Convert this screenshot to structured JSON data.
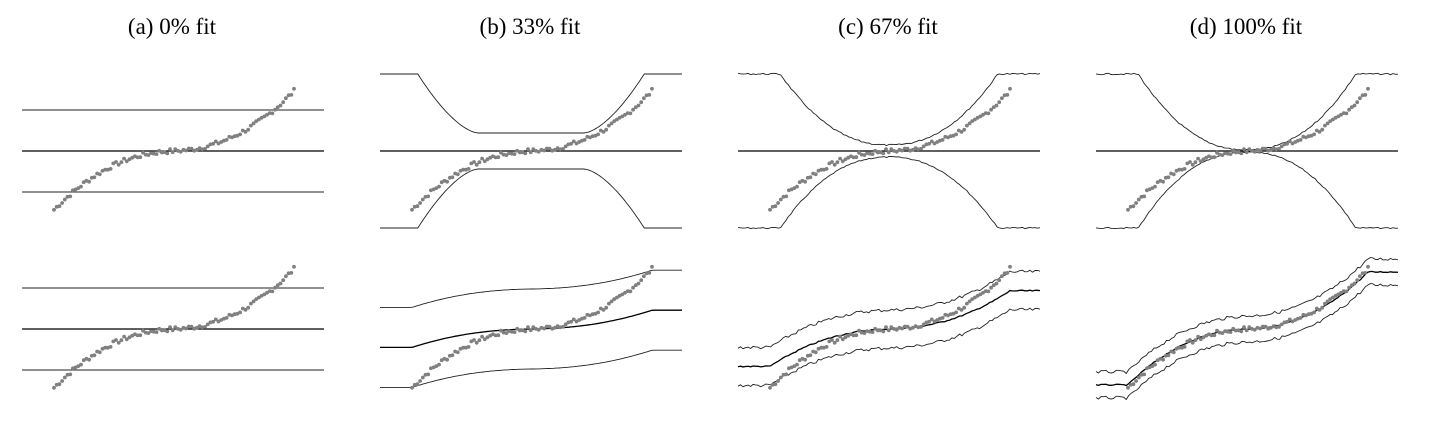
{
  "figure": {
    "panels": [
      {
        "title": "(a) 0% fit"
      },
      {
        "title": "(b) 33% fit"
      },
      {
        "title": "(c) 67% fit"
      },
      {
        "title": "(d) 100% fit"
      }
    ]
  },
  "chart_data": [
    {
      "type": "scatter",
      "panel": "(a) 0% fit",
      "row": "top",
      "description": "residual quantiles with constant envelope",
      "fit_fraction": 0.0,
      "x": [
        0,
        100
      ],
      "center_line": 0,
      "envelope": {
        "upper": 1.0,
        "lower": -1.0
      },
      "points": "sorted residuals rising from about -1.3 to 1.4"
    },
    {
      "type": "scatter",
      "panel": "(b) 33% fit",
      "row": "top",
      "fit_fraction": 0.33,
      "center_line": 0,
      "envelope": {
        "upper_edge": 1.9,
        "upper_mid": 0.45,
        "lower_edge": -1.85,
        "lower_mid": -0.4
      }
    },
    {
      "type": "scatter",
      "panel": "(c) 67% fit",
      "row": "top",
      "fit_fraction": 0.67,
      "center_line": 0,
      "envelope": {
        "upper_edge": 1.95,
        "upper_mid": 0.15,
        "lower_edge": -1.9,
        "lower_mid": -0.15
      }
    },
    {
      "type": "scatter",
      "panel": "(d) 100% fit",
      "row": "top",
      "fit_fraction": 1.0,
      "center_line": 0,
      "envelope": {
        "upper_edge": 1.95,
        "upper_mid": 0.02,
        "lower_edge": -1.9,
        "lower_mid": -0.02
      }
    },
    {
      "type": "scatter",
      "panel": "(a) 0% fit",
      "row": "bottom",
      "fit_fraction": 0.0
    },
    {
      "type": "scatter",
      "panel": "(b) 33% fit",
      "row": "bottom",
      "fit_fraction": 0.33
    },
    {
      "type": "scatter",
      "panel": "(c) 67% fit",
      "row": "bottom",
      "fit_fraction": 0.67
    },
    {
      "type": "scatter",
      "panel": "(d) 100% fit",
      "row": "bottom",
      "fit_fraction": 1.0
    }
  ]
}
